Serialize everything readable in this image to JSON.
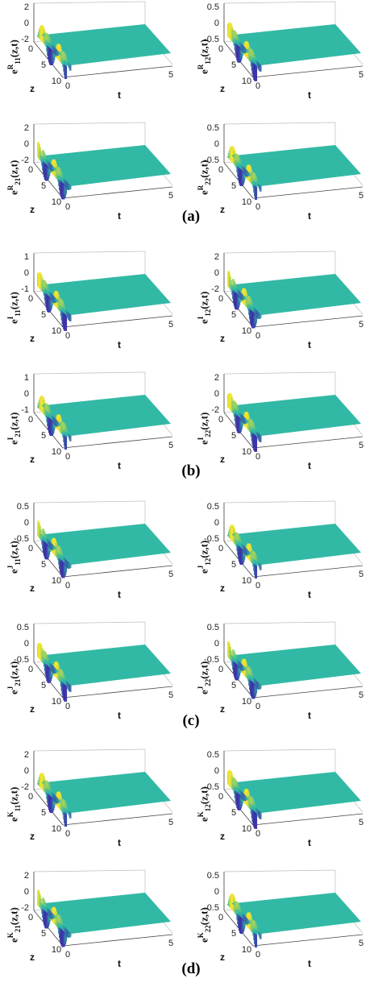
{
  "figure": {
    "groups": [
      {
        "caption": "(a)",
        "kind": "R",
        "panels": [
          {
            "sub": "11",
            "yticks": [
              "2",
              "0",
              "-2"
            ]
          },
          {
            "sub": "12",
            "yticks": [
              "0.5",
              "0",
              "-0.5"
            ]
          },
          {
            "sub": "21",
            "yticks": [
              "2",
              "0",
              "-2"
            ]
          },
          {
            "sub": "22",
            "yticks": [
              "0.5",
              "0",
              "-0.5"
            ]
          }
        ]
      },
      {
        "caption": "(b)",
        "kind": "I",
        "panels": [
          {
            "sub": "11",
            "yticks": [
              "1",
              "0",
              "-1"
            ]
          },
          {
            "sub": "12",
            "yticks": [
              "2",
              "0",
              "-2"
            ]
          },
          {
            "sub": "21",
            "yticks": [
              "1",
              "0",
              "-1"
            ]
          },
          {
            "sub": "22",
            "yticks": [
              "2",
              "0",
              "-2"
            ]
          }
        ]
      },
      {
        "caption": "(c)",
        "kind": "J",
        "panels": [
          {
            "sub": "11",
            "yticks": [
              "0.5",
              "0",
              "-0.5"
            ]
          },
          {
            "sub": "12",
            "yticks": [
              "0.5",
              "0",
              "-0.5"
            ]
          },
          {
            "sub": "21",
            "yticks": [
              "0.5",
              "0",
              "-0.5"
            ]
          },
          {
            "sub": "22",
            "yticks": [
              "0.5",
              "0",
              "-0.5"
            ]
          }
        ]
      },
      {
        "caption": "(d)",
        "kind": "K",
        "panels": [
          {
            "sub": "11",
            "yticks": [
              "2",
              "0",
              "-2"
            ]
          },
          {
            "sub": "12",
            "yticks": [
              "0.5",
              "0",
              "-0.5"
            ]
          },
          {
            "sub": "21",
            "yticks": [
              "2",
              "0",
              "-2"
            ]
          },
          {
            "sub": "22",
            "yticks": [
              "0.5",
              "0",
              "-0.5"
            ]
          }
        ]
      }
    ],
    "axis": {
      "xlabel": "t",
      "zlabel": "z",
      "t_ticks": [
        "0",
        "5"
      ],
      "z_ticks": [
        "0",
        "5",
        "10"
      ],
      "ylabel_base": "e",
      "ylabel_suffix": "(z,t)"
    }
  },
  "chart_data": {
    "type": "surface",
    "description_axes": {
      "z_range": [
        0,
        10
      ],
      "t_range": [
        0,
        5
      ]
    },
    "surface_colors": {
      "low": "#3e2fa8",
      "mid": "#2ab7a6",
      "high": "#f5e52b",
      "plane": "#27b5a0"
    },
    "panels": [
      {
        "group": "(a)",
        "label": "e_11^R(z,t)",
        "zlim": [
          -2,
          2
        ]
      },
      {
        "group": "(a)",
        "label": "e_12^R(z,t)",
        "zlim": [
          -0.5,
          0.5
        ]
      },
      {
        "group": "(a)",
        "label": "e_21^R(z,t)",
        "zlim": [
          -2,
          2
        ]
      },
      {
        "group": "(a)",
        "label": "e_22^R(z,t)",
        "zlim": [
          -0.5,
          0.5
        ]
      },
      {
        "group": "(b)",
        "label": "e_11^I(z,t)",
        "zlim": [
          -1,
          1
        ]
      },
      {
        "group": "(b)",
        "label": "e_12^I(z,t)",
        "zlim": [
          -2,
          2
        ]
      },
      {
        "group": "(b)",
        "label": "e_21^I(z,t)",
        "zlim": [
          -1,
          1
        ]
      },
      {
        "group": "(b)",
        "label": "e_22^I(z,t)",
        "zlim": [
          -2,
          2
        ]
      },
      {
        "group": "(c)",
        "label": "e_11^J(z,t)",
        "zlim": [
          -0.5,
          0.5
        ]
      },
      {
        "group": "(c)",
        "label": "e_12^J(z,t)",
        "zlim": [
          -0.5,
          0.5
        ]
      },
      {
        "group": "(c)",
        "label": "e_21^J(z,t)",
        "zlim": [
          -0.5,
          0.5
        ]
      },
      {
        "group": "(c)",
        "label": "e_22^J(z,t)",
        "zlim": [
          -0.5,
          0.5
        ]
      },
      {
        "group": "(d)",
        "label": "e_11^K(z,t)",
        "zlim": [
          -2,
          2
        ]
      },
      {
        "group": "(d)",
        "label": "e_12^K(z,t)",
        "zlim": [
          -0.5,
          0.5
        ]
      },
      {
        "group": "(d)",
        "label": "e_21^K(z,t)",
        "zlim": [
          -2,
          2
        ]
      },
      {
        "group": "(d)",
        "label": "e_22^K(z,t)",
        "zlim": [
          -0.5,
          0.5
        ]
      }
    ]
  }
}
